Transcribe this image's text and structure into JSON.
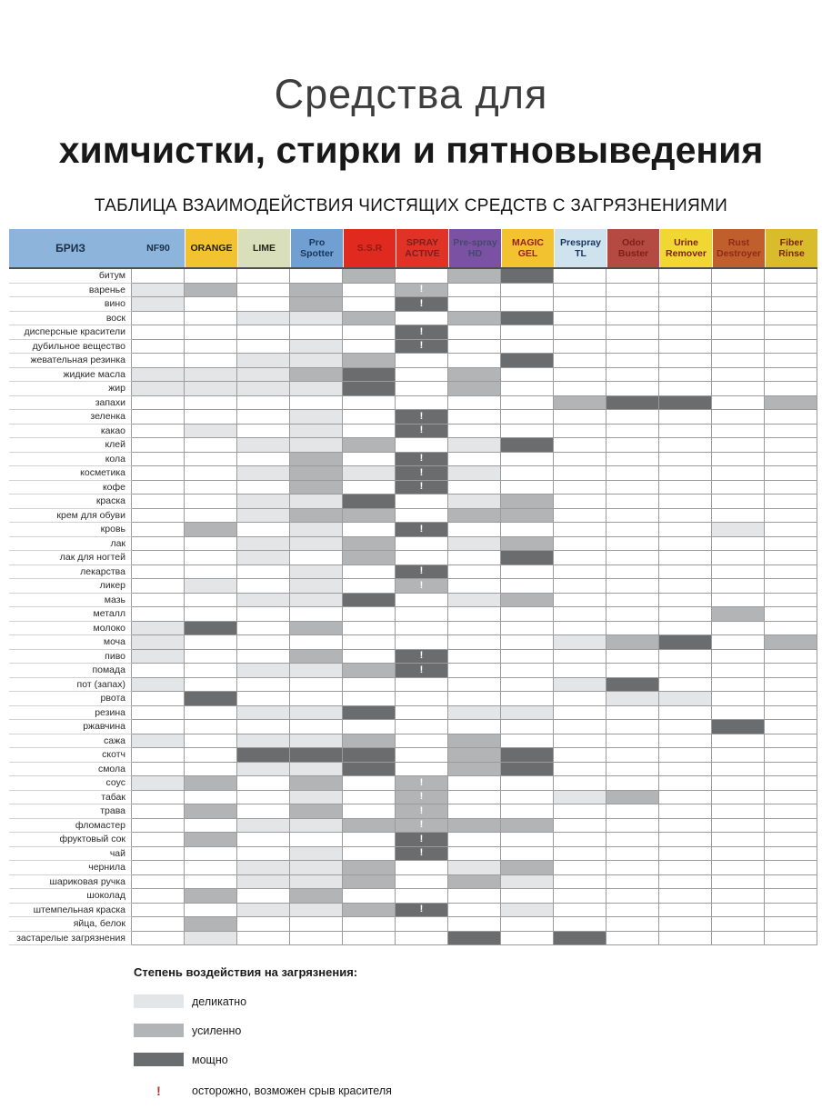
{
  "title": {
    "line1": "Средства для",
    "line2": "химчистки, стирки и пятновыведения"
  },
  "subtitle": "ТАБЛИЦА ВЗАИМОДЕЙСТВИЯ ЧИСТЯЩИХ СРЕДСТВ С ЗАГРЯЗНЕНИЯМИ",
  "levels": {
    "d": "#e4e5e7",
    "u": "#b2b4b6",
    "m": "#6b6c6e"
  },
  "table": {
    "brand": "БРИЗ",
    "brand_bg": "#8db4da",
    "brand_fg": "#1a2e4a",
    "columns": [
      {
        "label": "NF90",
        "bg": "#8db4da",
        "fg": "#1a2e4a"
      },
      {
        "label": "ORANGE",
        "bg": "#f2c230",
        "fg": "#221c12"
      },
      {
        "label": "LIME",
        "bg": "#d9debb",
        "fg": "#23271b"
      },
      {
        "label": "Pro Spotter",
        "bg": "#719fd1",
        "fg": "#17365d"
      },
      {
        "label": "S.S.R",
        "bg": "#e02a1f",
        "fg": "#8f1c13"
      },
      {
        "label": "SPRAY ACTIVE",
        "bg": "#e03227",
        "fg": "#7b201b"
      },
      {
        "label": "Pre-spray HD",
        "bg": "#7b51a4",
        "fg": "#44496e"
      },
      {
        "label": "MAGIC GEL",
        "bg": "#f2c230",
        "fg": "#9c2018"
      },
      {
        "label": "Prespray TL",
        "bg": "#cfe3ef",
        "fg": "#17365d"
      },
      {
        "label": "Odor Buster",
        "bg": "#b54a42",
        "fg": "#7e1f18"
      },
      {
        "label": "Urine Remover",
        "bg": "#f0d734",
        "fg": "#7e2018"
      },
      {
        "label": "Rust Destroyer",
        "bg": "#c05f2c",
        "fg": "#8f2a1a"
      },
      {
        "label": "Fiber Rinse",
        "bg": "#d8bc2b",
        "fg": "#7e2018"
      }
    ],
    "rows": [
      {
        "label": "битум",
        "cells": [
          "",
          "",
          "",
          "",
          "u",
          "",
          "u",
          "m",
          "",
          "",
          "",
          "",
          ""
        ]
      },
      {
        "label": "варенье",
        "cells": [
          "d",
          "u",
          "",
          "u",
          "",
          "u!",
          "",
          "",
          "",
          "",
          "",
          "",
          ""
        ]
      },
      {
        "label": "вино",
        "cells": [
          "d",
          "",
          "",
          "u",
          "",
          "m!",
          "",
          "",
          "",
          "",
          "",
          "",
          ""
        ]
      },
      {
        "label": "воск",
        "cells": [
          "",
          "",
          "d",
          "d",
          "u",
          "",
          "u",
          "m",
          "",
          "",
          "",
          "",
          ""
        ]
      },
      {
        "label": "дисперсные красители",
        "cells": [
          "",
          "",
          "",
          "",
          "",
          "m!",
          "",
          "",
          "",
          "",
          "",
          "",
          ""
        ]
      },
      {
        "label": "дубильное вещество",
        "cells": [
          "",
          "",
          "",
          "d",
          "",
          "m!",
          "",
          "",
          "",
          "",
          "",
          "",
          ""
        ]
      },
      {
        "label": "жевательная резинка",
        "cells": [
          "",
          "",
          "d",
          "d",
          "u",
          "",
          "",
          "m",
          "",
          "",
          "",
          "",
          ""
        ]
      },
      {
        "label": "жидкие масла",
        "cells": [
          "d",
          "d",
          "d",
          "u",
          "m",
          "",
          "u",
          "",
          "",
          "",
          "",
          "",
          ""
        ]
      },
      {
        "label": "жир",
        "cells": [
          "d",
          "d",
          "d",
          "d",
          "m",
          "",
          "u",
          "",
          "",
          "",
          "",
          "",
          ""
        ]
      },
      {
        "label": "запахи",
        "cells": [
          "",
          "",
          "",
          "",
          "",
          "",
          "",
          "",
          "u",
          "m",
          "m",
          "",
          "u"
        ]
      },
      {
        "label": "зеленка",
        "cells": [
          "",
          "",
          "",
          "d",
          "",
          "m!",
          "",
          "",
          "",
          "",
          "",
          "",
          ""
        ]
      },
      {
        "label": "какао",
        "cells": [
          "",
          "d",
          "",
          "d",
          "",
          "m!",
          "",
          "",
          "",
          "",
          "",
          "",
          ""
        ]
      },
      {
        "label": "клей",
        "cells": [
          "",
          "",
          "d",
          "d",
          "u",
          "",
          "d",
          "m",
          "",
          "",
          "",
          "",
          ""
        ]
      },
      {
        "label": "кола",
        "cells": [
          "",
          "",
          "",
          "u",
          "",
          "m!",
          "",
          "",
          "",
          "",
          "",
          "",
          ""
        ]
      },
      {
        "label": "косметика",
        "cells": [
          "",
          "",
          "d",
          "u",
          "d",
          "m!",
          "d",
          "",
          "",
          "",
          "",
          "",
          ""
        ]
      },
      {
        "label": "кофе",
        "cells": [
          "",
          "",
          "",
          "u",
          "",
          "m!",
          "",
          "",
          "",
          "",
          "",
          "",
          ""
        ]
      },
      {
        "label": "краска",
        "cells": [
          "",
          "",
          "d",
          "d",
          "m",
          "",
          "d",
          "u",
          "",
          "",
          "",
          "",
          ""
        ]
      },
      {
        "label": "крем для обуви",
        "cells": [
          "",
          "",
          "d",
          "u",
          "u",
          "",
          "u",
          "u",
          "",
          "",
          "",
          "",
          ""
        ]
      },
      {
        "label": "кровь",
        "cells": [
          "",
          "u",
          "",
          "d",
          "",
          "m!",
          "",
          "",
          "",
          "",
          "",
          "d",
          ""
        ]
      },
      {
        "label": "лак",
        "cells": [
          "",
          "",
          "d",
          "d",
          "u",
          "",
          "d",
          "u",
          "",
          "",
          "",
          "",
          ""
        ]
      },
      {
        "label": "лак для ногтей",
        "cells": [
          "",
          "",
          "d",
          "",
          "u",
          "",
          "",
          "m",
          "",
          "",
          "",
          "",
          ""
        ]
      },
      {
        "label": "лекарства",
        "cells": [
          "",
          "",
          "",
          "d",
          "",
          "m!",
          "",
          "",
          "",
          "",
          "",
          "",
          ""
        ]
      },
      {
        "label": "ликер",
        "cells": [
          "",
          "d",
          "",
          "d",
          "",
          "u!",
          "",
          "",
          "",
          "",
          "",
          "",
          ""
        ]
      },
      {
        "label": "мазь",
        "cells": [
          "",
          "",
          "d",
          "d",
          "m",
          "",
          "d",
          "u",
          "",
          "",
          "",
          "",
          ""
        ]
      },
      {
        "label": "металл",
        "cells": [
          "",
          "",
          "",
          "",
          "",
          "",
          "",
          "",
          "",
          "",
          "",
          "u",
          ""
        ]
      },
      {
        "label": "молоко",
        "cells": [
          "d",
          "m",
          "",
          "u",
          "",
          "",
          "",
          "",
          "",
          "",
          "",
          "",
          ""
        ]
      },
      {
        "label": "моча",
        "cells": [
          "d",
          "",
          "",
          "",
          "",
          "",
          "",
          "",
          "d",
          "u",
          "m",
          "",
          "u"
        ]
      },
      {
        "label": "пиво",
        "cells": [
          "d",
          "",
          "",
          "u",
          "",
          "m!",
          "",
          "",
          "",
          "",
          "",
          "",
          ""
        ]
      },
      {
        "label": "помада",
        "cells": [
          "",
          "",
          "d",
          "d",
          "u",
          "m!",
          "",
          "",
          "",
          "",
          "",
          "",
          ""
        ]
      },
      {
        "label": "пот (запах)",
        "cells": [
          "d",
          "",
          "",
          "",
          "",
          "",
          "",
          "",
          "d",
          "m",
          "",
          "",
          ""
        ]
      },
      {
        "label": "рвота",
        "cells": [
          "",
          "m",
          "",
          "",
          "",
          "",
          "",
          "",
          "",
          "d",
          "d",
          "",
          ""
        ]
      },
      {
        "label": "резина",
        "cells": [
          "",
          "",
          "d",
          "d",
          "m",
          "",
          "d",
          "d",
          "",
          "",
          "",
          "",
          ""
        ]
      },
      {
        "label": "ржавчина",
        "cells": [
          "",
          "",
          "",
          "",
          "",
          "",
          "",
          "",
          "",
          "",
          "",
          "m",
          ""
        ]
      },
      {
        "label": "сажа",
        "cells": [
          "d",
          "",
          "d",
          "d",
          "u",
          "",
          "u",
          "",
          "",
          "",
          "",
          "",
          ""
        ]
      },
      {
        "label": "скотч",
        "cells": [
          "",
          "",
          "m",
          "m",
          "m",
          "",
          "u",
          "m",
          "",
          "",
          "",
          "",
          ""
        ]
      },
      {
        "label": "смола",
        "cells": [
          "",
          "",
          "d",
          "d",
          "m",
          "",
          "u",
          "m",
          "",
          "",
          "",
          "",
          ""
        ]
      },
      {
        "label": "соус",
        "cells": [
          "d",
          "u",
          "",
          "u",
          "",
          "u!",
          "",
          "",
          "",
          "",
          "",
          "",
          ""
        ]
      },
      {
        "label": "табак",
        "cells": [
          "",
          "",
          "",
          "d",
          "",
          "u!",
          "",
          "",
          "d",
          "u",
          "",
          "",
          ""
        ]
      },
      {
        "label": "трава",
        "cells": [
          "",
          "u",
          "",
          "u",
          "",
          "u!",
          "",
          "",
          "",
          "",
          "",
          "",
          ""
        ]
      },
      {
        "label": "фломастер",
        "cells": [
          "",
          "",
          "d",
          "d",
          "u",
          "u!",
          "u",
          "u",
          "",
          "",
          "",
          "",
          ""
        ]
      },
      {
        "label": "фруктовый сок",
        "cells": [
          "",
          "u",
          "",
          "",
          "",
          "m!",
          "",
          "",
          "",
          "",
          "",
          "",
          ""
        ]
      },
      {
        "label": "чай",
        "cells": [
          "",
          "",
          "",
          "d",
          "",
          "m!",
          "",
          "",
          "",
          "",
          "",
          "",
          ""
        ]
      },
      {
        "label": "чернила",
        "cells": [
          "",
          "",
          "d",
          "d",
          "u",
          "",
          "d",
          "u",
          "",
          "",
          "",
          "",
          ""
        ]
      },
      {
        "label": "шариковая ручка",
        "cells": [
          "",
          "",
          "d",
          "d",
          "u",
          "",
          "u",
          "d",
          "",
          "",
          "",
          "",
          ""
        ]
      },
      {
        "label": "шоколад",
        "cells": [
          "",
          "u",
          "",
          "u",
          "",
          "",
          "",
          "",
          "",
          "",
          "",
          "",
          ""
        ]
      },
      {
        "label": "штемпельная краска",
        "cells": [
          "",
          "",
          "d",
          "d",
          "u",
          "m!",
          "",
          "d",
          "",
          "",
          "",
          "",
          ""
        ]
      },
      {
        "label": "яйца, белок",
        "cells": [
          "",
          "u",
          "",
          "",
          "",
          "",
          "",
          "",
          "",
          "",
          "",
          "",
          ""
        ]
      },
      {
        "label": "застарелые загрязнения",
        "cells": [
          "",
          "d",
          "",
          "",
          "",
          "",
          "m",
          "",
          "m",
          "",
          "",
          "",
          ""
        ]
      }
    ]
  },
  "legend": {
    "title": "Степень воздействия на загрязнения:",
    "items": [
      {
        "level": "d",
        "label": "деликатно"
      },
      {
        "level": "u",
        "label": "усиленно"
      },
      {
        "level": "m",
        "label": "мощно"
      }
    ],
    "warning": {
      "symbol": "!",
      "label": "осторожно, возможен срыв красителя",
      "color": "#b6322a"
    }
  }
}
